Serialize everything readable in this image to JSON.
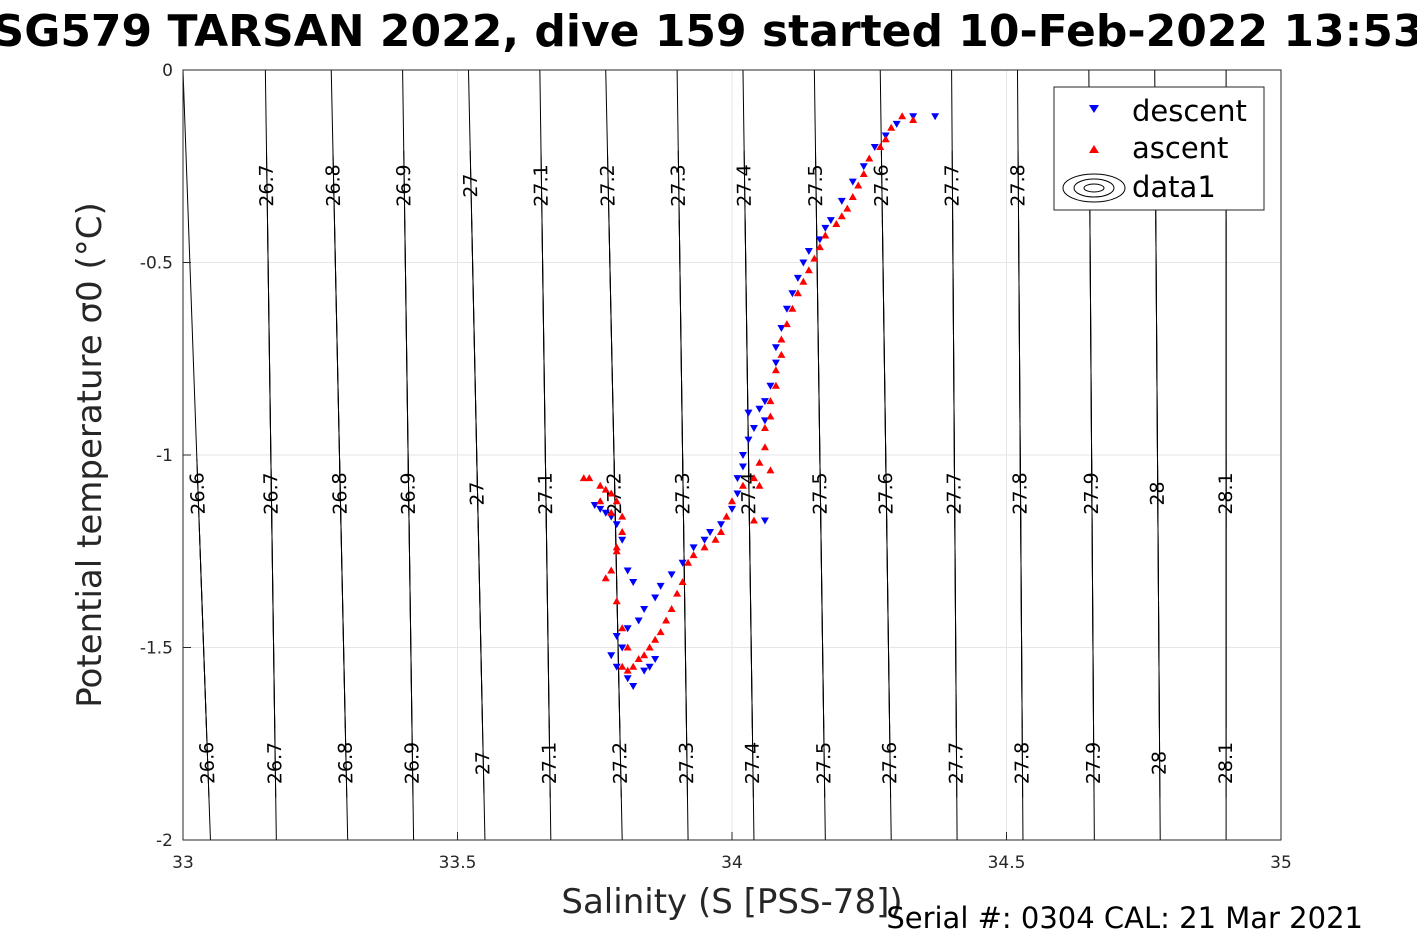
{
  "chart_data": {
    "type": "scatter",
    "title": "SG579 TARSAN 2022, dive 159 started 10-Feb-2022 13:53",
    "xlabel": "Salinity (S [PSS-78])",
    "ylabel": "Potential temperature σ0 (°C)",
    "xlim": [
      33,
      35
    ],
    "ylim": [
      -2,
      0
    ],
    "x_ticks": [
      "33",
      "33.5",
      "34",
      "34.5",
      "35"
    ],
    "y_ticks": [
      "0",
      "-0.5",
      "-1",
      "-1.5",
      "-2"
    ],
    "grid": true,
    "legend": {
      "placement": "top-right",
      "entries": [
        "descent",
        "ascent",
        "data1"
      ]
    },
    "series": [
      {
        "name": "descent",
        "marker": "triangle-down",
        "color": "#0000ff",
        "points": [
          [
            34.37,
            -0.12
          ],
          [
            34.33,
            -0.12
          ],
          [
            34.3,
            -0.14
          ],
          [
            34.28,
            -0.17
          ],
          [
            34.26,
            -0.2
          ],
          [
            34.24,
            -0.25
          ],
          [
            34.22,
            -0.29
          ],
          [
            34.2,
            -0.34
          ],
          [
            34.18,
            -0.39
          ],
          [
            34.17,
            -0.41
          ],
          [
            34.16,
            -0.44
          ],
          [
            34.14,
            -0.47
          ],
          [
            34.13,
            -0.5
          ],
          [
            34.12,
            -0.54
          ],
          [
            34.11,
            -0.58
          ],
          [
            34.1,
            -0.62
          ],
          [
            34.09,
            -0.67
          ],
          [
            34.08,
            -0.72
          ],
          [
            34.08,
            -0.76
          ],
          [
            34.07,
            -0.82
          ],
          [
            34.06,
            -0.86
          ],
          [
            34.05,
            -0.88
          ],
          [
            34.03,
            -0.89
          ],
          [
            34.06,
            -0.91
          ],
          [
            34.04,
            -0.93
          ],
          [
            34.03,
            -0.96
          ],
          [
            34.02,
            -1.0
          ],
          [
            34.02,
            -1.03
          ],
          [
            34.01,
            -1.06
          ],
          [
            34.01,
            -1.1
          ],
          [
            34.0,
            -1.14
          ],
          [
            34.06,
            -1.17
          ],
          [
            33.98,
            -1.18
          ],
          [
            33.96,
            -1.2
          ],
          [
            33.95,
            -1.22
          ],
          [
            33.93,
            -1.24
          ],
          [
            33.91,
            -1.28
          ],
          [
            33.89,
            -1.31
          ],
          [
            33.87,
            -1.34
          ],
          [
            33.86,
            -1.37
          ],
          [
            33.84,
            -1.4
          ],
          [
            33.82,
            -1.33
          ],
          [
            33.83,
            -1.43
          ],
          [
            33.81,
            -1.45
          ],
          [
            33.79,
            -1.47
          ],
          [
            33.8,
            -1.5
          ],
          [
            33.78,
            -1.52
          ],
          [
            33.79,
            -1.55
          ],
          [
            33.81,
            -1.58
          ],
          [
            33.82,
            -1.6
          ],
          [
            33.84,
            -1.56
          ],
          [
            33.86,
            -1.53
          ],
          [
            33.85,
            -1.55
          ],
          [
            33.79,
            -1.18
          ],
          [
            33.77,
            -1.15
          ],
          [
            33.76,
            -1.14
          ],
          [
            33.75,
            -1.13
          ],
          [
            33.78,
            -1.16
          ],
          [
            33.8,
            -1.22
          ],
          [
            33.81,
            -1.3
          ]
        ]
      },
      {
        "name": "ascent",
        "marker": "triangle-up",
        "color": "#ff0000",
        "points": [
          [
            34.33,
            -0.13
          ],
          [
            34.31,
            -0.12
          ],
          [
            34.29,
            -0.15
          ],
          [
            34.28,
            -0.18
          ],
          [
            34.27,
            -0.2
          ],
          [
            34.25,
            -0.23
          ],
          [
            34.24,
            -0.27
          ],
          [
            34.23,
            -0.3
          ],
          [
            34.22,
            -0.33
          ],
          [
            34.21,
            -0.36
          ],
          [
            34.2,
            -0.38
          ],
          [
            34.19,
            -0.4
          ],
          [
            34.17,
            -0.43
          ],
          [
            34.16,
            -0.46
          ],
          [
            34.15,
            -0.49
          ],
          [
            34.14,
            -0.52
          ],
          [
            34.13,
            -0.55
          ],
          [
            34.12,
            -0.58
          ],
          [
            34.11,
            -0.62
          ],
          [
            34.1,
            -0.66
          ],
          [
            34.09,
            -0.7
          ],
          [
            34.09,
            -0.74
          ],
          [
            34.08,
            -0.78
          ],
          [
            34.08,
            -0.82
          ],
          [
            34.07,
            -0.86
          ],
          [
            34.07,
            -0.9
          ],
          [
            34.06,
            -0.93
          ],
          [
            34.06,
            -0.98
          ],
          [
            34.05,
            -1.02
          ],
          [
            34.04,
            -1.06
          ],
          [
            34.02,
            -1.08
          ],
          [
            34.0,
            -1.12
          ],
          [
            33.99,
            -1.16
          ],
          [
            33.98,
            -1.2
          ],
          [
            33.97,
            -1.22
          ],
          [
            33.95,
            -1.24
          ],
          [
            33.93,
            -1.26
          ],
          [
            33.92,
            -1.28
          ],
          [
            33.91,
            -1.33
          ],
          [
            33.9,
            -1.36
          ],
          [
            33.89,
            -1.4
          ],
          [
            33.88,
            -1.43
          ],
          [
            33.87,
            -1.46
          ],
          [
            33.86,
            -1.48
          ],
          [
            33.85,
            -1.5
          ],
          [
            33.84,
            -1.52
          ],
          [
            33.83,
            -1.53
          ],
          [
            33.82,
            -1.55
          ],
          [
            33.81,
            -1.56
          ],
          [
            33.8,
            -1.55
          ],
          [
            33.81,
            -1.5
          ],
          [
            33.8,
            -1.45
          ],
          [
            33.79,
            -1.38
          ],
          [
            33.78,
            -1.3
          ],
          [
            33.79,
            -1.24
          ],
          [
            33.8,
            -1.2
          ],
          [
            33.8,
            -1.16
          ],
          [
            33.79,
            -1.12
          ],
          [
            33.78,
            -1.1
          ],
          [
            33.77,
            -1.09
          ],
          [
            33.76,
            -1.08
          ],
          [
            33.74,
            -1.06
          ],
          [
            33.73,
            -1.06
          ],
          [
            33.76,
            -1.12
          ],
          [
            33.78,
            -1.15
          ],
          [
            33.79,
            -1.25
          ],
          [
            33.77,
            -1.32
          ],
          [
            34.05,
            -1.08
          ],
          [
            34.07,
            -1.04
          ],
          [
            34.04,
            -1.17
          ]
        ]
      }
    ],
    "isopycnals": {
      "series_name": "data1",
      "levels": [
        "26.6",
        "26.7",
        "26.8",
        "26.9",
        "27",
        "27.1",
        "27.2",
        "27.3",
        "27.4",
        "27.5",
        "27.6",
        "27.7",
        "27.8",
        "27.9",
        "28",
        "28.1"
      ],
      "salinity_at_minus2": [
        33.05,
        33.17,
        33.3,
        33.42,
        33.55,
        33.67,
        33.8,
        33.92,
        34.04,
        34.17,
        34.29,
        34.41,
        34.53,
        34.66,
        34.78,
        34.9
      ],
      "salinity_at_0": [
        33.0,
        33.15,
        33.27,
        33.4,
        33.52,
        33.65,
        33.77,
        33.9,
        34.02,
        34.15,
        34.27,
        34.4,
        34.52,
        34.65,
        34.77,
        34.9
      ]
    },
    "footer": "Serial #: 0304  CAL: 21 Mar 2021"
  }
}
